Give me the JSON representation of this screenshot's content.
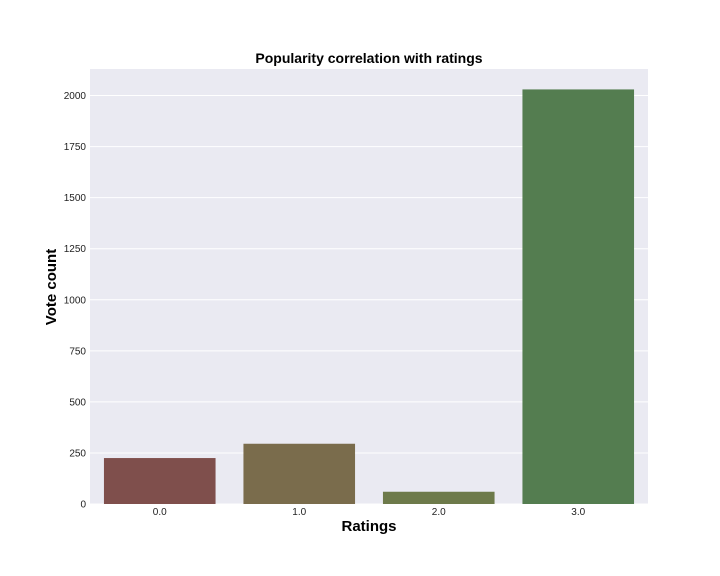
{
  "chart_data": {
    "type": "bar",
    "title": "Popularity correlation with ratings",
    "xlabel": "Ratings",
    "ylabel": "Vote count",
    "categories": [
      "0.0",
      "1.0",
      "2.0",
      "3.0"
    ],
    "values": [
      225,
      295,
      60,
      2030
    ],
    "bar_colors": [
      "#7f4f4c",
      "#7a6c4c",
      "#6d7a4a",
      "#547d50"
    ],
    "ylim": [
      0,
      2130
    ],
    "yticks": [
      0,
      250,
      500,
      750,
      1000,
      1250,
      1500,
      1750,
      2000
    ],
    "grid": true,
    "legend": "none",
    "background": "#eaeaf2",
    "grid_color": "#ffffff"
  }
}
